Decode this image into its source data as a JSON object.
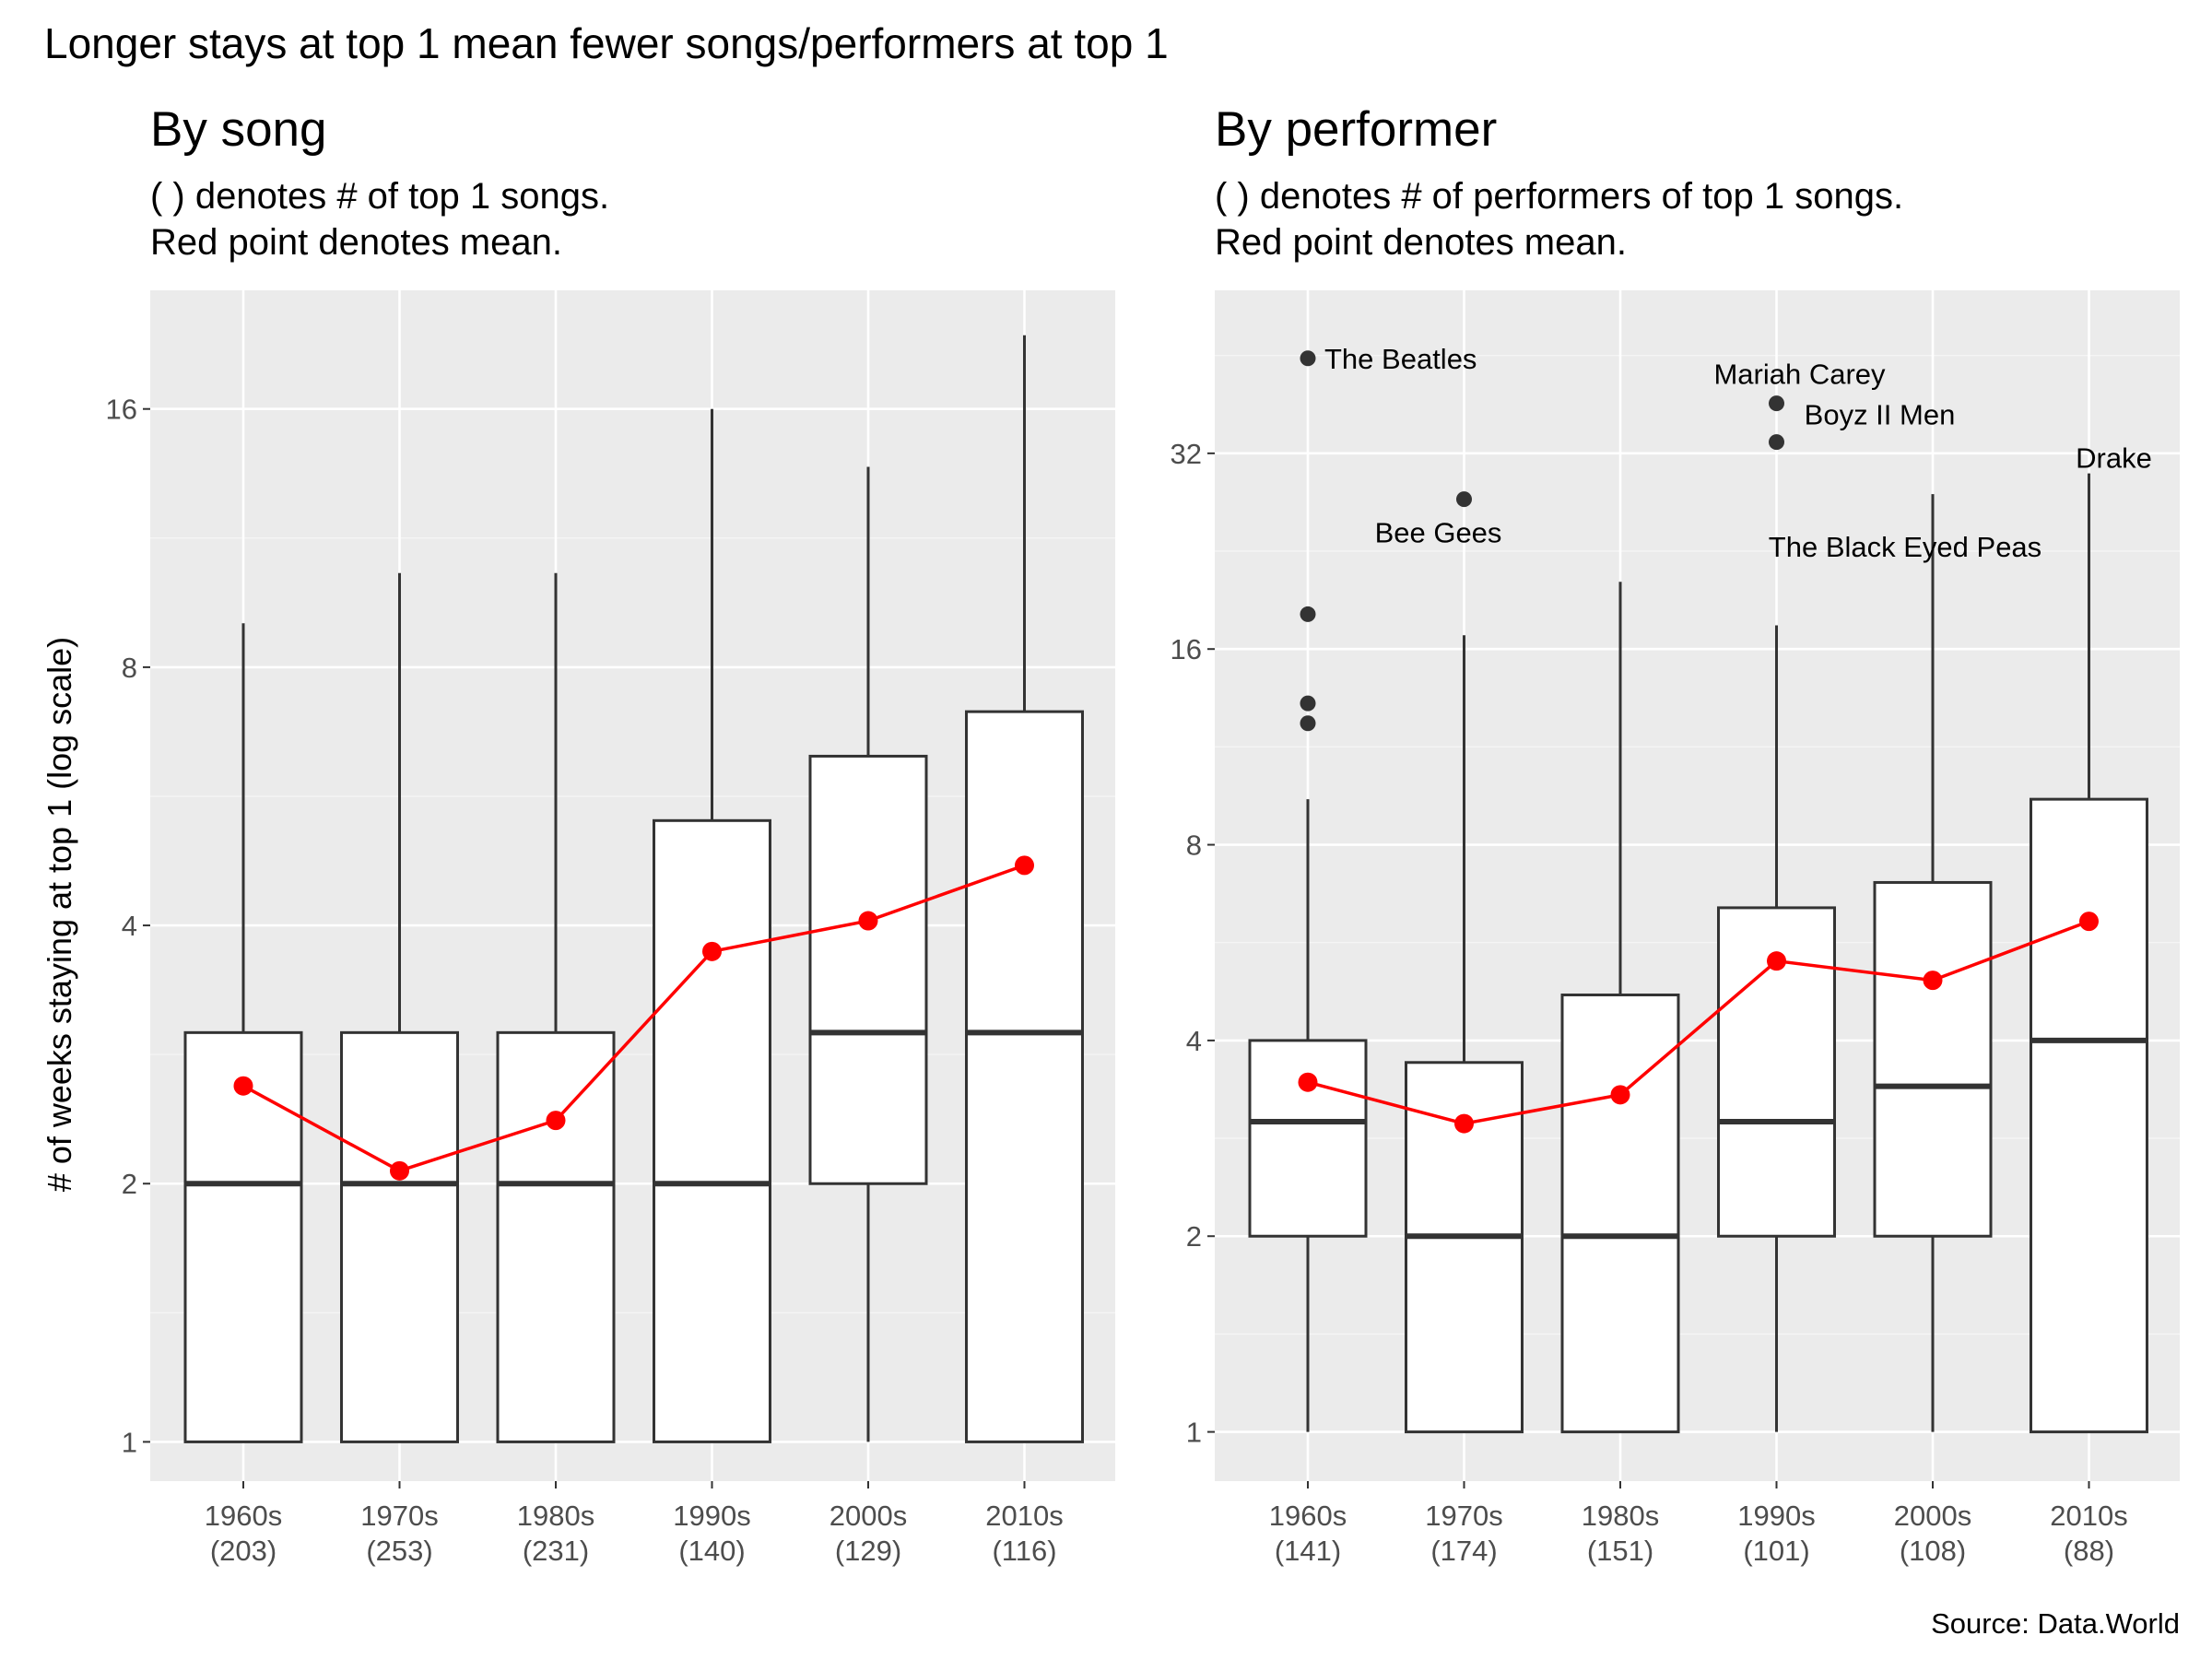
{
  "title": "Longer stays at top 1 mean fewer songs/performers at top 1",
  "caption": "Source: Data.World",
  "chart_data": [
    {
      "type": "boxplot",
      "title": "By song",
      "subtitle": [
        "( ) denotes # of top 1 songs.",
        "Red point denotes mean."
      ],
      "ylabel": "# of weeks staying at top 1 (log scale)",
      "y_scale": "log2",
      "ylim": [
        0.9,
        22
      ],
      "y_ticks": [
        1,
        2,
        4,
        8,
        16
      ],
      "categories": [
        "1960s",
        "1970s",
        "1980s",
        "1990s",
        "2000s",
        "2010s"
      ],
      "counts": [
        "(203)",
        "(253)",
        "(231)",
        "(140)",
        "(129)",
        "(116)"
      ],
      "boxes": [
        {
          "min": 1,
          "q1": 1,
          "median": 2,
          "q3": 3,
          "max": 9
        },
        {
          "min": 1,
          "q1": 1,
          "median": 2,
          "q3": 3,
          "max": 10.3
        },
        {
          "min": 1,
          "q1": 1,
          "median": 2,
          "q3": 3,
          "max": 10.3
        },
        {
          "min": 1,
          "q1": 1,
          "median": 2,
          "q3": 5.3,
          "max": 16
        },
        {
          "min": 1,
          "q1": 2,
          "median": 3,
          "q3": 6.3,
          "max": 13.7
        },
        {
          "min": 1,
          "q1": 1,
          "median": 3,
          "q3": 7.1,
          "max": 19.5
        }
      ],
      "outliers": [],
      "means": [
        2.6,
        2.07,
        2.37,
        3.73,
        4.05,
        4.7
      ],
      "mean_color": "#ff0000",
      "grid": true
    },
    {
      "type": "boxplot",
      "title": "By performer",
      "subtitle": [
        "( ) denotes # of performers of top 1 songs.",
        "Red point denotes mean."
      ],
      "ylabel": "",
      "y_scale": "log2",
      "ylim": [
        0.84,
        57
      ],
      "y_ticks": [
        1,
        2,
        4,
        8,
        16,
        32
      ],
      "categories": [
        "1960s",
        "1970s",
        "1980s",
        "1990s",
        "2000s",
        "2010s"
      ],
      "counts": [
        "(141)",
        "(174)",
        "(151)",
        "(101)",
        "(108)",
        "(88)"
      ],
      "boxes": [
        {
          "min": 1,
          "q1": 2,
          "median": 3,
          "q3": 4,
          "max": 9.4
        },
        {
          "min": 1,
          "q1": 1,
          "median": 2,
          "q3": 3.7,
          "max": 16.8
        },
        {
          "min": 1,
          "q1": 1,
          "median": 2,
          "q3": 4.7,
          "max": 20.3
        },
        {
          "min": 1,
          "q1": 2,
          "median": 3,
          "q3": 6.4,
          "max": 17.4
        },
        {
          "min": 1,
          "q1": 2,
          "median": 3.4,
          "q3": 7,
          "max": 27.7
        },
        {
          "min": 1,
          "q1": 1,
          "median": 4,
          "q3": 9.4,
          "max": 29.8
        }
      ],
      "outliers": [
        {
          "category": "1960s",
          "value": 44.8,
          "label": "The Beatles"
        },
        {
          "category": "1960s",
          "value": 18.1
        },
        {
          "category": "1960s",
          "value": 13.2
        },
        {
          "category": "1960s",
          "value": 12.3
        },
        {
          "category": "1970s",
          "value": 27.2,
          "label": "Bee Gees"
        },
        {
          "category": "1990s",
          "value": 38.2,
          "label": "Mariah Carey"
        },
        {
          "category": "1990s",
          "value": 33.3,
          "label": "Boyz II Men"
        }
      ],
      "extra_labels": [
        {
          "category": "2000s",
          "value": 23,
          "label": "The Black Eyed Peas"
        },
        {
          "category": "2010s",
          "value": 31.5,
          "label": "Drake"
        }
      ],
      "means": [
        3.45,
        2.98,
        3.3,
        5.3,
        4.95,
        6.1
      ],
      "mean_color": "#ff0000",
      "grid": true
    }
  ]
}
